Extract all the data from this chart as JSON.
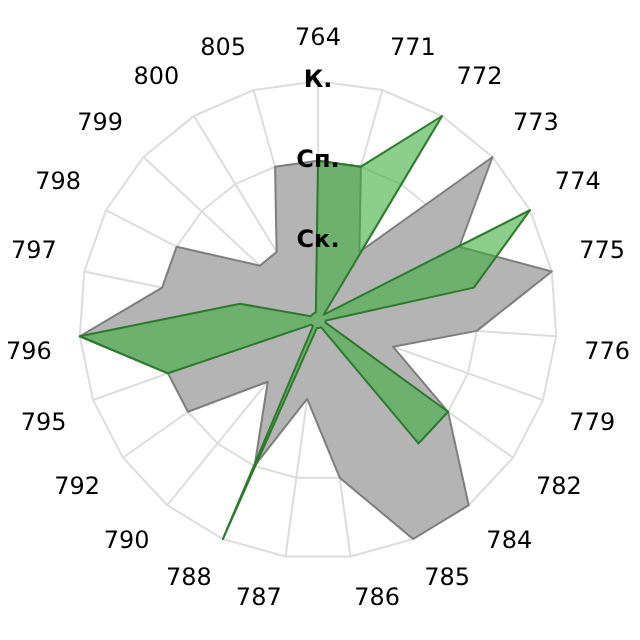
{
  "chart_data": {
    "type": "radar",
    "categories": [
      "764",
      "771",
      "772",
      "773",
      "774",
      "775",
      "776",
      "779",
      "782",
      "784",
      "785",
      "786",
      "787",
      "788",
      "790",
      "792",
      "795",
      "796",
      "797",
      "798",
      "799",
      "800",
      "805"
    ],
    "series": [
      {
        "color": "#b4b4b4",
        "values": [
          2,
          2,
          1,
          3,
          2,
          3,
          2,
          1,
          2,
          3,
          3,
          2,
          1,
          2,
          1,
          2,
          2,
          3,
          2,
          2,
          1,
          1,
          2
        ]
      },
      {
        "color": "#3fae3f",
        "values": [
          2,
          2,
          3,
          0.1,
          3,
          2,
          0.1,
          0.1,
          2,
          2,
          0.1,
          0.1,
          0.1,
          3,
          0.1,
          0.1,
          2,
          3,
          1,
          0.1,
          0.1,
          0.1,
          0.1
        ]
      }
    ],
    "ylim": [
      0,
      3
    ],
    "yticks": [
      {
        "value": 1,
        "label": "Ск."
      },
      {
        "value": 2,
        "label": "Сп."
      },
      {
        "value": 3,
        "label": "К."
      }
    ],
    "grid": true,
    "legend": false,
    "marker": "none"
  }
}
